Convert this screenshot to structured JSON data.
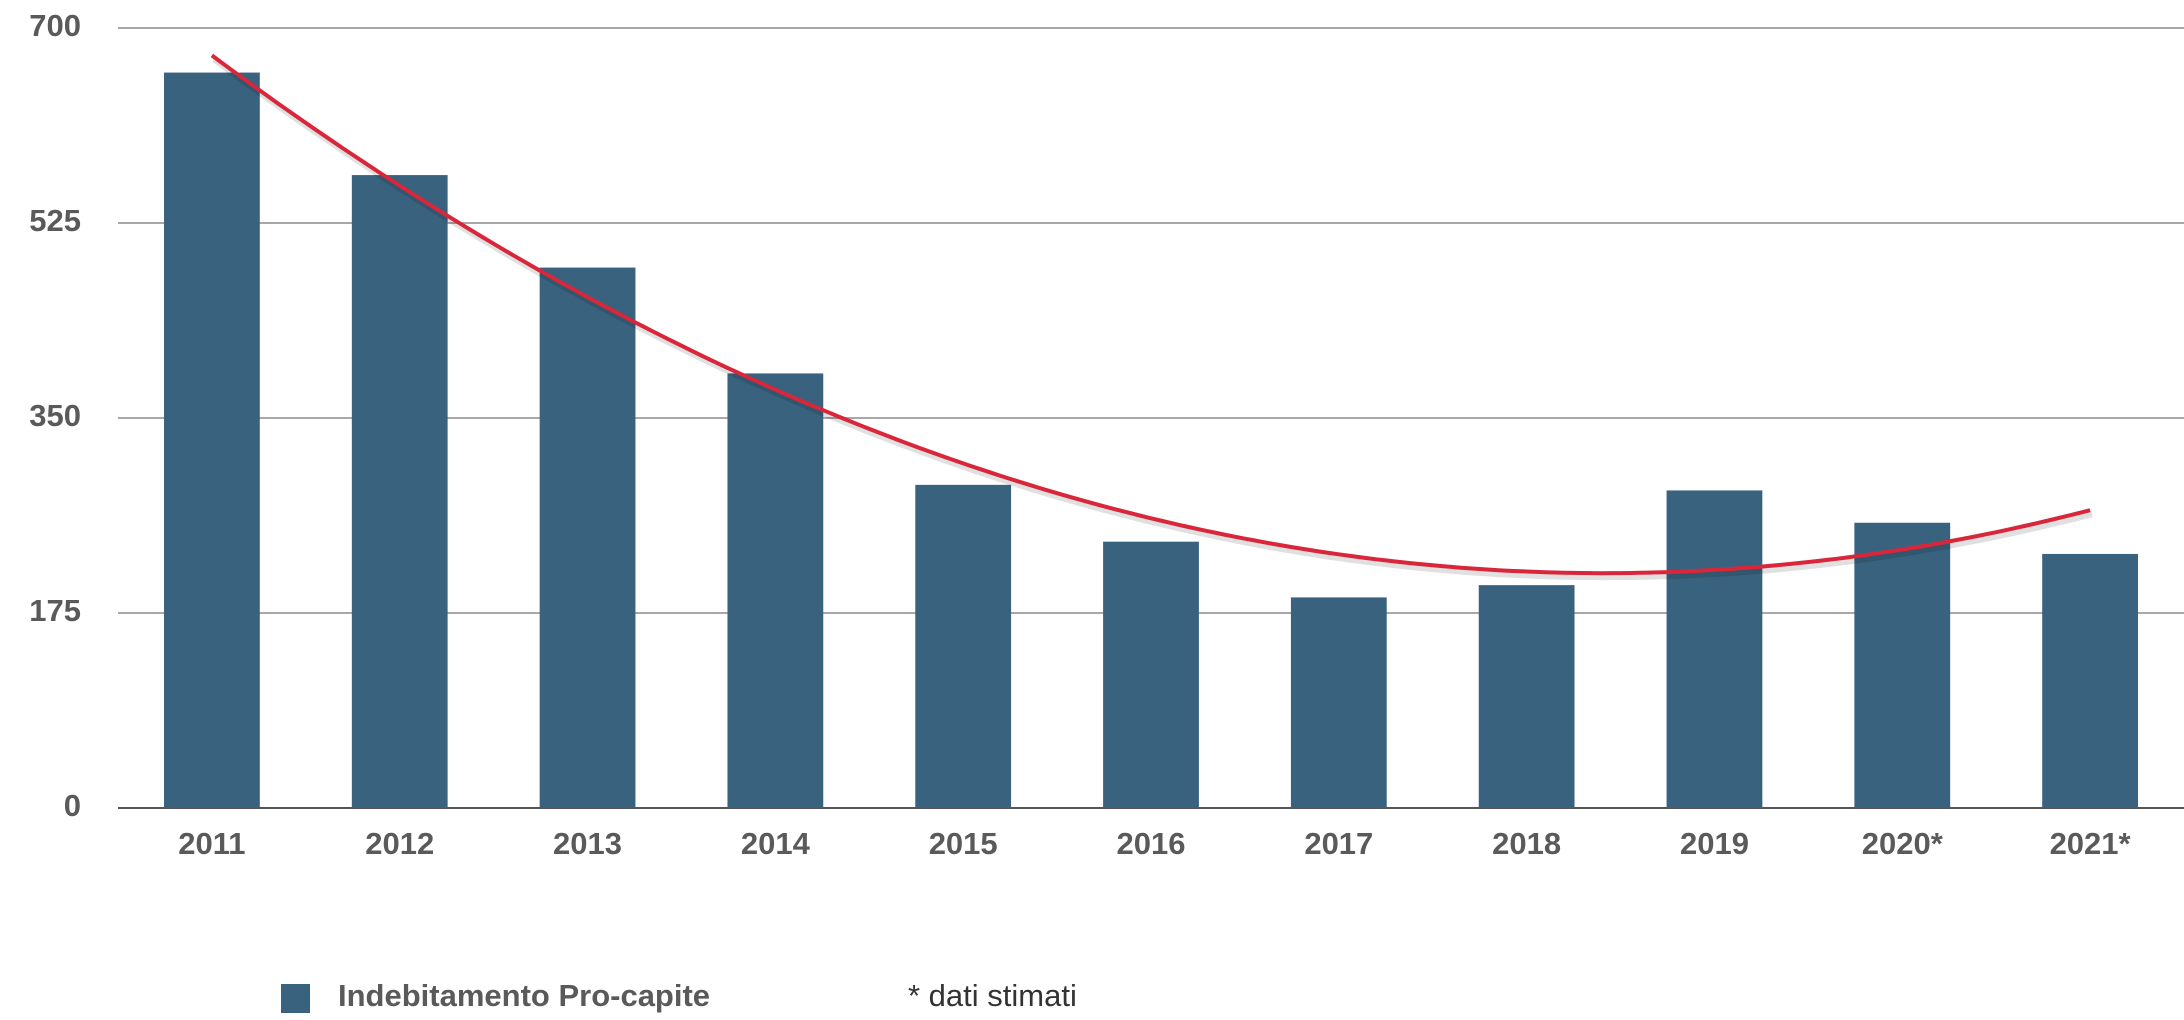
{
  "chart_data": {
    "type": "bar",
    "categories": [
      "2011",
      "2012",
      "2013",
      "2014",
      "2015",
      "2016",
      "2017",
      "2018",
      "2019",
      "2020*",
      "2021*"
    ],
    "series": [
      {
        "name": "Indebitamento Pro-capite",
        "color": "#38627e",
        "values": [
          660,
          568,
          485,
          390,
          290,
          239,
          189,
          200,
          285,
          256,
          228
        ]
      }
    ],
    "trendline": {
      "type": "polynomial",
      "order": 2,
      "color": "#d9263a"
    },
    "annotation": "* dati stimati",
    "ylim": [
      0,
      700
    ],
    "yticks": [
      0,
      175,
      350,
      525,
      700
    ],
    "grid": true
  }
}
